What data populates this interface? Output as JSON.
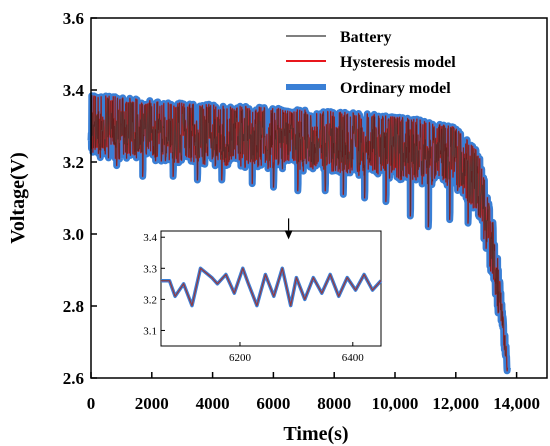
{
  "chart_data": {
    "type": "line",
    "title": "",
    "xlabel": "Time(s)",
    "ylabel": "Voltage(V)",
    "xlim": [
      0,
      15000
    ],
    "ylim": [
      2.6,
      3.6
    ],
    "x_ticks": [
      0,
      2000,
      4000,
      6000,
      8000,
      10000,
      12000,
      14000
    ],
    "x_tick_labels": [
      "0",
      "2000",
      "4000",
      "6000",
      "8000",
      "10,000",
      "12,000",
      "14,000"
    ],
    "y_ticks": [
      2.6,
      2.8,
      3.0,
      3.2,
      3.4,
      3.6
    ],
    "y_tick_labels": [
      "2.6",
      "2.8",
      "3.0",
      "3.2",
      "3.4",
      "3.6"
    ],
    "grid": false,
    "legend_position": "top-right",
    "series": [
      {
        "name": "Battery",
        "color": "#555555",
        "x": [
          0,
          500,
          1000,
          2000,
          3000,
          4000,
          5000,
          6000,
          7000,
          8000,
          9000,
          10000,
          11000,
          12000,
          12500,
          13000,
          13300,
          13600,
          13800
        ],
        "values": [
          3.3,
          3.29,
          3.28,
          3.27,
          3.27,
          3.26,
          3.26,
          3.25,
          3.24,
          3.24,
          3.23,
          3.22,
          3.2,
          3.16,
          3.13,
          3.06,
          2.93,
          2.74,
          2.6
        ]
      },
      {
        "name": "Hysteresis model",
        "color": "#e8161c",
        "x": [
          0,
          500,
          1000,
          2000,
          3000,
          4000,
          5000,
          6000,
          7000,
          8000,
          9000,
          10000,
          11000,
          12000,
          12500,
          13000,
          13300,
          13600,
          13800
        ],
        "values": [
          3.3,
          3.29,
          3.28,
          3.27,
          3.27,
          3.26,
          3.26,
          3.25,
          3.24,
          3.24,
          3.23,
          3.22,
          3.2,
          3.16,
          3.13,
          3.06,
          2.93,
          2.74,
          2.6
        ]
      },
      {
        "name": "Ordinary model",
        "color": "#3a7fd5",
        "x": [
          0,
          500,
          1000,
          2000,
          3000,
          4000,
          5000,
          6000,
          7000,
          8000,
          9000,
          10000,
          11000,
          12000,
          12500,
          13000,
          13300,
          13600,
          13800
        ],
        "values": [
          3.3,
          3.29,
          3.28,
          3.27,
          3.27,
          3.26,
          3.26,
          3.25,
          3.24,
          3.24,
          3.23,
          3.22,
          3.2,
          3.16,
          3.13,
          3.06,
          2.93,
          2.74,
          2.6
        ]
      }
    ],
    "upper_envelope": {
      "x": [
        0,
        2000,
        4000,
        6000,
        8000,
        10000,
        12000,
        12800,
        13300,
        13700
      ],
      "values": [
        3.39,
        3.37,
        3.36,
        3.35,
        3.34,
        3.33,
        3.3,
        3.22,
        3.0,
        2.65
      ]
    },
    "lower_envelope": {
      "x": [
        0,
        2000,
        4000,
        6000,
        8000,
        10000,
        12000,
        12800,
        13300,
        13700
      ],
      "values": [
        3.16,
        3.15,
        3.14,
        3.13,
        3.12,
        3.1,
        3.07,
        2.98,
        2.78,
        2.6
      ]
    },
    "dips": [
      {
        "x": 0,
        "y": 3.26
      },
      {
        "x": 150,
        "y": 3.24
      },
      {
        "x": 850,
        "y": 3.19
      },
      {
        "x": 1700,
        "y": 3.16
      },
      {
        "x": 2700,
        "y": 3.16
      },
      {
        "x": 3500,
        "y": 3.15
      },
      {
        "x": 4300,
        "y": 3.15
      },
      {
        "x": 5300,
        "y": 3.14
      },
      {
        "x": 6000,
        "y": 3.13
      },
      {
        "x": 6800,
        "y": 3.12
      },
      {
        "x": 7700,
        "y": 3.12
      },
      {
        "x": 8300,
        "y": 3.11
      },
      {
        "x": 9000,
        "y": 3.1
      },
      {
        "x": 9700,
        "y": 3.09
      },
      {
        "x": 10500,
        "y": 3.05
      },
      {
        "x": 11100,
        "y": 3.02
      },
      {
        "x": 11800,
        "y": 3.04
      },
      {
        "x": 12400,
        "y": 3.03
      },
      {
        "x": 13000,
        "y": 2.96
      }
    ],
    "inset": {
      "xlim": [
        6060,
        6450
      ],
      "ylim": [
        3.05,
        3.42
      ],
      "x_ticks": [
        6200,
        6400
      ],
      "x_tick_labels": [
        "6200",
        "6400"
      ],
      "y_ticks": [
        3.1,
        3.2,
        3.3,
        3.4
      ],
      "y_tick_labels": [
        "3.1",
        "3.2",
        "3.3",
        "3.4"
      ],
      "x": [
        6060,
        6075,
        6085,
        6100,
        6115,
        6130,
        6150,
        6160,
        6175,
        6190,
        6205,
        6215,
        6230,
        6245,
        6260,
        6275,
        6290,
        6300,
        6315,
        6330,
        6345,
        6360,
        6375,
        6390,
        6405,
        6420,
        6435,
        6450
      ],
      "values": [
        3.26,
        3.26,
        3.21,
        3.25,
        3.18,
        3.3,
        3.27,
        3.25,
        3.28,
        3.22,
        3.3,
        3.25,
        3.18,
        3.28,
        3.21,
        3.3,
        3.18,
        3.27,
        3.2,
        3.27,
        3.22,
        3.28,
        3.21,
        3.27,
        3.23,
        3.28,
        3.23,
        3.26
      ],
      "annotation": {
        "type": "arrow",
        "x": 6500,
        "y": 3.01
      }
    }
  }
}
